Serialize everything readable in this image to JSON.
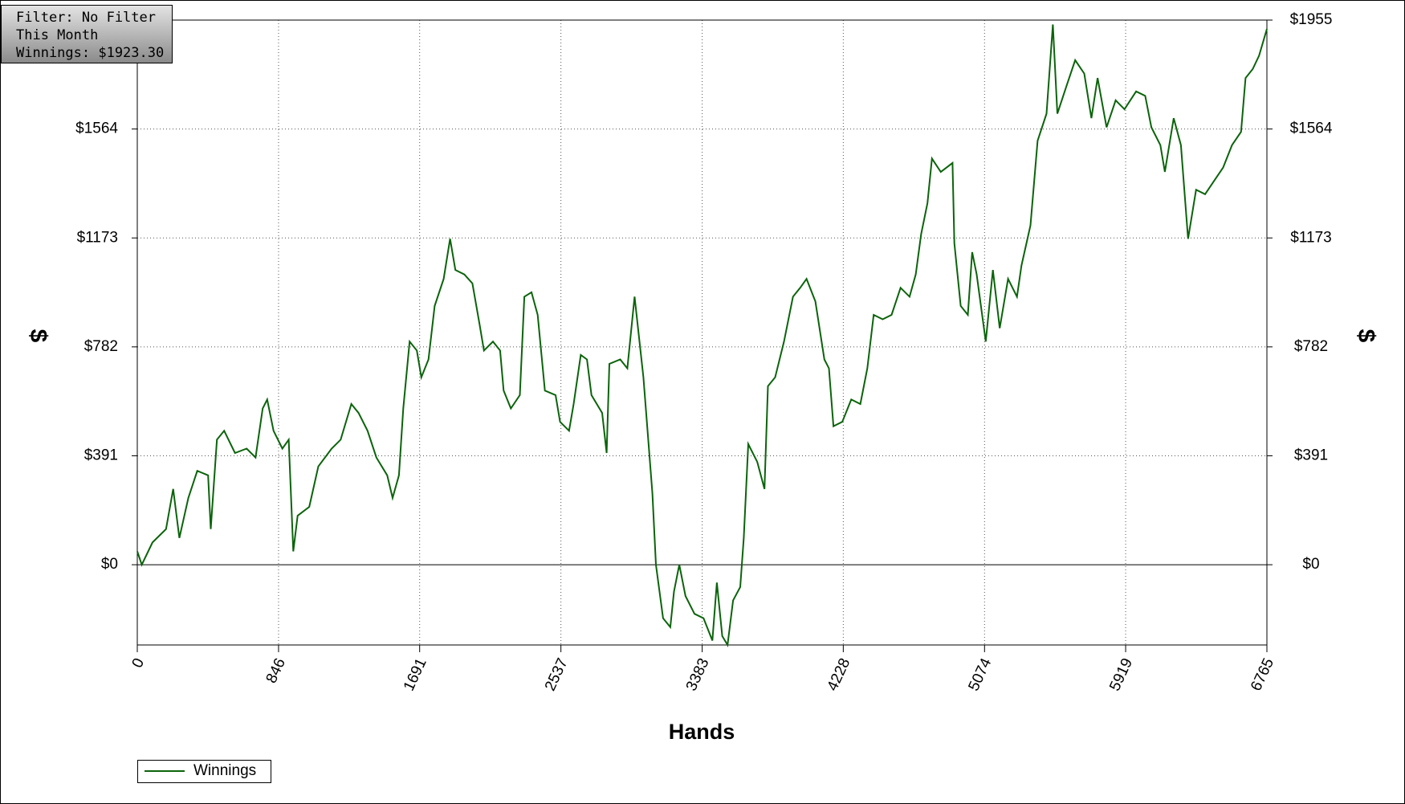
{
  "chart_data": {
    "type": "line",
    "info": [
      "Filter: No Filter",
      "This Month",
      "Winnings: $1923.30"
    ],
    "xlabel": "Hands",
    "ylabel": "$",
    "y2label": "$",
    "xlim": [
      0,
      6765
    ],
    "xticks": [
      0,
      846,
      1691,
      2537,
      3383,
      4228,
      5074,
      5919,
      6765
    ],
    "ylim": [
      -288,
      1955
    ],
    "yticks": [
      {
        "value": 0,
        "label": "$0"
      },
      {
        "value": 391,
        "label": "$391"
      },
      {
        "value": 782,
        "label": "$782"
      },
      {
        "value": 1173,
        "label": "$1173"
      },
      {
        "value": 1564,
        "label": "$1564"
      },
      {
        "value": 1955,
        "label": "$1955"
      }
    ],
    "grid": true,
    "legend": "bottom-left",
    "x": [
      0,
      27,
      91,
      172,
      215,
      252,
      306,
      359,
      424,
      440,
      477,
      520,
      585,
      655,
      708,
      751,
      778,
      816,
      869,
      907,
      934,
      960,
      1030,
      1084,
      1164,
      1218,
      1282,
      1325,
      1379,
      1432,
      1497,
      1529,
      1567,
      1593,
      1631,
      1674,
      1701,
      1744,
      1781,
      1835,
      1873,
      1905,
      1959,
      2007,
      2049,
      2076,
      2130,
      2173,
      2194,
      2237,
      2291,
      2318,
      2361,
      2398,
      2441,
      2505,
      2532,
      2586,
      2613,
      2656,
      2693,
      2720,
      2784,
      2811,
      2827,
      2892,
      2935,
      2978,
      2999,
      3031,
      3085,
      3106,
      3149,
      3192,
      3214,
      3246,
      3283,
      3337,
      3391,
      3444,
      3471,
      3503,
      3535,
      3568,
      3611,
      3632,
      3659,
      3713,
      3756,
      3777,
      3820,
      3873,
      3927,
      3970,
      4008,
      4061,
      4115,
      4142,
      4169,
      4222,
      4276,
      4330,
      4372,
      4410,
      4464,
      4517,
      4571,
      4625,
      4662,
      4694,
      4732,
      4759,
      4812,
      4882,
      4893,
      4931,
      4974,
      5000,
      5027,
      5081,
      5124,
      5165,
      5215,
      5268,
      5295,
      5349,
      5392,
      5445,
      5483,
      5510,
      5563,
      5617,
      5671,
      5714,
      5751,
      5805,
      5859,
      5912,
      5982,
      6036,
      6073,
      6127,
      6154,
      6207,
      6250,
      6293,
      6341,
      6395,
      6449,
      6503,
      6556,
      6610,
      6637,
      6680,
      6718,
      6765
    ],
    "series": [
      {
        "name": "Winnings",
        "color": "#0b640b",
        "values": [
          48,
          0,
          80,
          128,
          272,
          96,
          240,
          337,
          321,
          128,
          449,
          481,
          401,
          417,
          385,
          561,
          593,
          481,
          417,
          449,
          48,
          176,
          208,
          353,
          417,
          449,
          577,
          545,
          481,
          385,
          321,
          240,
          321,
          561,
          801,
          769,
          673,
          737,
          929,
          1026,
          1170,
          1058,
          1042,
          1010,
          865,
          769,
          801,
          769,
          625,
          561,
          609,
          962,
          978,
          897,
          625,
          609,
          513,
          481,
          577,
          753,
          737,
          609,
          545,
          401,
          721,
          737,
          705,
          962,
          849,
          673,
          256,
          0,
          -192,
          -224,
          -96,
          0,
          -112,
          -176,
          -192,
          -272,
          -64,
          -256,
          -288,
          -128,
          -80,
          96,
          433,
          369,
          272,
          641,
          673,
          801,
          962,
          994,
          1026,
          945,
          737,
          705,
          497,
          513,
          593,
          577,
          705,
          897,
          881,
          897,
          994,
          962,
          1042,
          1186,
          1298,
          1458,
          1410,
          1442,
          1154,
          929,
          897,
          1122,
          1042,
          801,
          1058,
          849,
          1026,
          962,
          1074,
          1218,
          1522,
          1619,
          1939,
          1619,
          1715,
          1811,
          1763,
          1603,
          1747,
          1570,
          1667,
          1635,
          1699,
          1683,
          1570,
          1506,
          1410,
          1603,
          1506,
          1170,
          1346,
          1330,
          1378,
          1426,
          1506,
          1554,
          1747,
          1779,
          1827,
          1923.3
        ]
      }
    ]
  }
}
